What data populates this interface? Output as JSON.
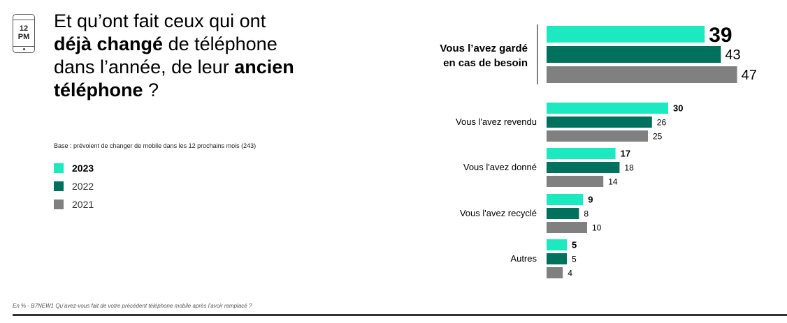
{
  "header": {
    "icon_line1": "12",
    "icon_line2": "PM",
    "title_part1": "Et qu’ont fait ceux qui ont ",
    "title_bold1": "déjà changé",
    "title_part2": " de téléphone dans l’année, de leur ",
    "title_bold2": "ancien téléphone",
    "title_part3": " ?",
    "base_note": "Base : prévoient de changer de mobile dans les 12 prochains mois (243)"
  },
  "legend": [
    {
      "label": "2023",
      "color": "#1de9c0"
    },
    {
      "label": "2022",
      "color": "#00715c"
    },
    {
      "label": "2021",
      "color": "#808080"
    }
  ],
  "footnote": "En % - B7NEW1 Qu’avez-vous fait de votre précédent téléphone mobile après l’avoir remplacé ?",
  "chart_data": {
    "type": "bar",
    "orientation": "horizontal",
    "categories": [
      "Vous l’avez gardé en cas de besoin",
      "Vous l'avez revendu",
      "Vous l'avez donné",
      "Vous l'avez recyclé",
      "Autres"
    ],
    "series": [
      {
        "name": "2023",
        "color": "#1de9c0",
        "values": [
          39,
          30,
          17,
          9,
          5
        ]
      },
      {
        "name": "2022",
        "color": "#00715c",
        "values": [
          43,
          26,
          18,
          8,
          5
        ]
      },
      {
        "name": "2021",
        "color": "#808080",
        "values": [
          47,
          25,
          14,
          10,
          4
        ]
      }
    ],
    "highlight_category": 0,
    "legend_position": "left",
    "grid": false
  }
}
